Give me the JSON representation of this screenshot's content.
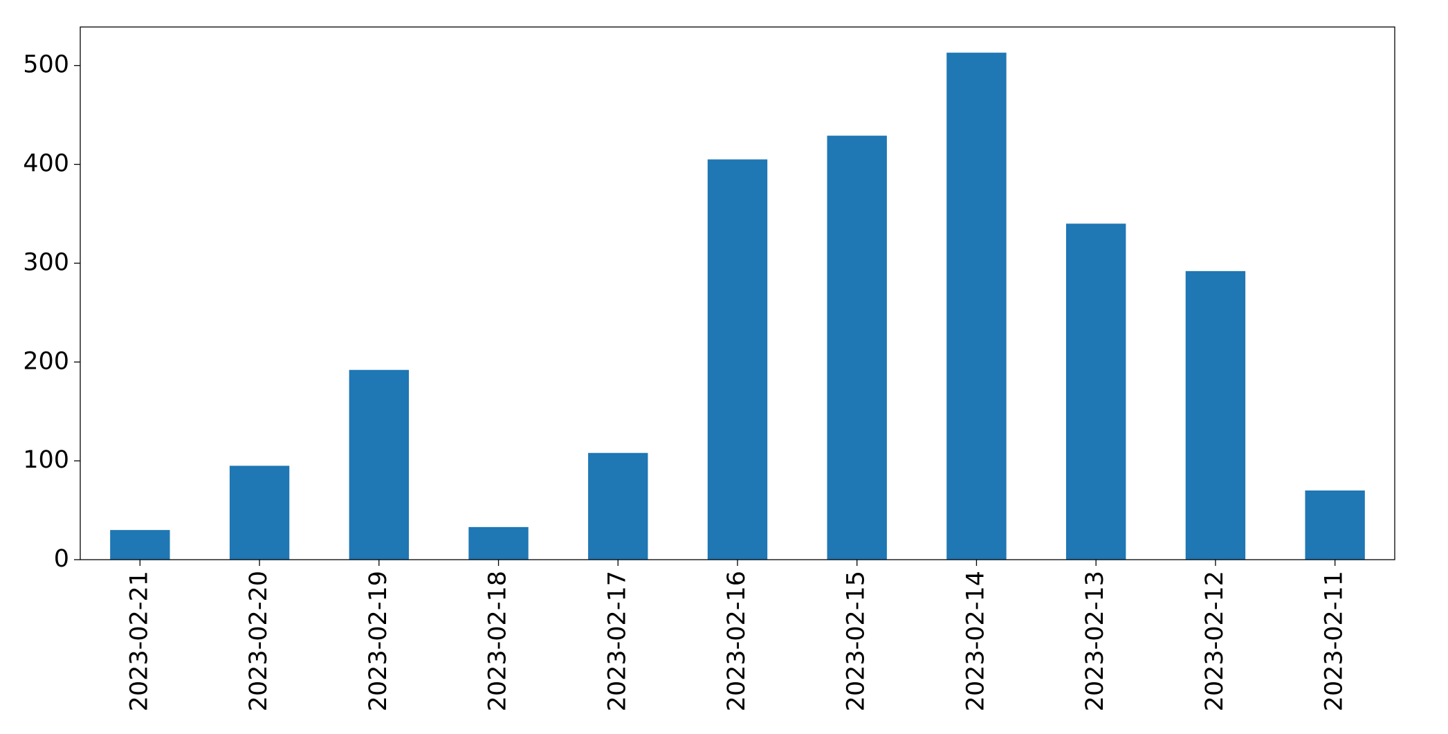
{
  "chart_data": {
    "type": "bar",
    "categories": [
      "2023-02-21",
      "2023-02-20",
      "2023-02-19",
      "2023-02-18",
      "2023-02-17",
      "2023-02-16",
      "2023-02-15",
      "2023-02-14",
      "2023-02-13",
      "2023-02-12",
      "2023-02-11"
    ],
    "values": [
      30,
      95,
      192,
      33,
      108,
      405,
      429,
      513,
      340,
      292,
      70
    ],
    "color": "#1f77b4",
    "ylim": [
      0,
      539
    ],
    "yticks": [
      0,
      100,
      200,
      300,
      400,
      500
    ],
    "grid": false
  }
}
